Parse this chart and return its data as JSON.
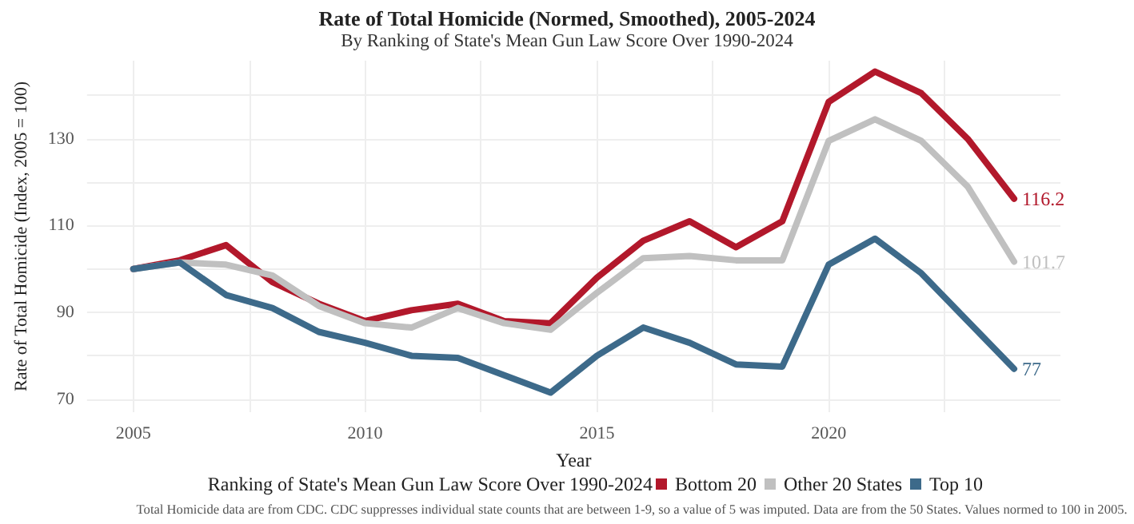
{
  "chart_data": {
    "type": "line",
    "title": "Rate of Total Homicide (Normed, Smoothed), 2005-2024",
    "subtitle": "By Ranking of State's Mean Gun Law Score Over 1990-2024",
    "xlabel": "Year",
    "ylabel": "Rate of Total Homicide (Index, 2005 = 100)",
    "legend_title": "Ranking of State's Mean Gun Law Score Over 1990-2024",
    "x": [
      2005,
      2006,
      2007,
      2008,
      2009,
      2010,
      2011,
      2012,
      2013,
      2014,
      2015,
      2016,
      2017,
      2018,
      2019,
      2020,
      2021,
      2022,
      2023,
      2024
    ],
    "series": [
      {
        "name": "Bottom 20",
        "color": "#b2182b",
        "values": [
          100,
          102,
          105.5,
          97,
          92,
          88,
          90.5,
          92,
          88,
          87.5,
          98,
          106.5,
          111,
          105,
          111,
          138.5,
          145.5,
          140.5,
          130,
          116.2
        ],
        "value_labels": [
          null,
          null,
          null,
          null,
          null,
          null,
          null,
          null,
          null,
          null,
          null,
          null,
          null,
          null,
          null,
          null,
          null,
          null,
          null,
          "116.2"
        ]
      },
      {
        "name": "Other 20 States",
        "color": "#c0c0c0",
        "values": [
          100,
          101.5,
          101,
          98.5,
          91.5,
          87.5,
          86.5,
          91,
          87.5,
          86,
          94.5,
          102.5,
          103,
          102,
          102,
          129.5,
          134.5,
          129.5,
          119,
          101.7
        ],
        "value_labels": [
          null,
          null,
          null,
          null,
          null,
          null,
          null,
          null,
          null,
          null,
          null,
          null,
          null,
          null,
          null,
          null,
          null,
          null,
          null,
          "101.7"
        ]
      },
      {
        "name": "Top 10",
        "color": "#3d6a8a",
        "values": [
          100,
          101.5,
          94,
          91,
          85.5,
          83,
          80,
          79.5,
          75.5,
          71.5,
          80,
          86.5,
          83,
          78,
          77.5,
          101,
          107,
          99,
          88,
          77
        ],
        "value_labels": [
          null,
          null,
          null,
          null,
          null,
          null,
          null,
          null,
          null,
          null,
          null,
          null,
          null,
          null,
          null,
          null,
          null,
          null,
          null,
          "77"
        ]
      }
    ],
    "xlim": [
      2004,
      2025
    ],
    "xticks": [
      2005,
      {
        "value": 2007.5,
        "label": null
      },
      2010,
      {
        "value": 2012.5,
        "label": null
      },
      2015,
      {
        "value": 2017.5,
        "label": null
      },
      2020,
      {
        "value": 2022.5,
        "label": null
      }
    ],
    "ylim": [
      67,
      148
    ],
    "yticks": [
      70,
      {
        "value": 80,
        "label": null
      },
      90,
      {
        "value": 100,
        "label": null
      },
      110,
      {
        "value": 120,
        "label": null
      },
      130,
      {
        "value": 140,
        "label": null
      }
    ],
    "grid": true,
    "legend": "bottom",
    "marker": "none",
    "line_style": "solid",
    "annotations": [
      "Total Homicide data are from CDC. CDC suppresses individual state counts that are between 1-9, so a value of 5 was imputed. Data are from the 50 States. Values normed to 100 in 2005."
    ]
  }
}
